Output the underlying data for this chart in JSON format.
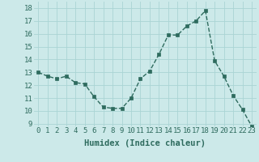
{
  "x": [
    0,
    1,
    2,
    3,
    4,
    5,
    6,
    7,
    8,
    9,
    10,
    11,
    12,
    13,
    14,
    15,
    16,
    17,
    18,
    19,
    20,
    21,
    22,
    23
  ],
  "y": [
    13.0,
    12.7,
    12.5,
    12.7,
    12.2,
    12.1,
    11.1,
    10.3,
    10.2,
    10.2,
    11.0,
    12.5,
    13.1,
    14.4,
    15.9,
    15.9,
    16.6,
    17.0,
    17.8,
    13.9,
    12.7,
    11.2,
    10.1,
    8.8
  ],
  "line_color": "#2e6b5e",
  "marker": "s",
  "marker_size": 2.5,
  "linewidth": 1.0,
  "linestyle": "--",
  "xlabel": "Humidex (Indice chaleur)",
  "xlim": [
    -0.5,
    23.5
  ],
  "ylim": [
    8.8,
    18.5
  ],
  "yticks": [
    9,
    10,
    11,
    12,
    13,
    14,
    15,
    16,
    17,
    18
  ],
  "xticks": [
    0,
    1,
    2,
    3,
    4,
    5,
    6,
    7,
    8,
    9,
    10,
    11,
    12,
    13,
    14,
    15,
    16,
    17,
    18,
    19,
    20,
    21,
    22,
    23
  ],
  "background_color": "#cce9e9",
  "grid_color": "#aad4d4",
  "tick_fontsize": 6.5,
  "xlabel_fontsize": 7.5
}
